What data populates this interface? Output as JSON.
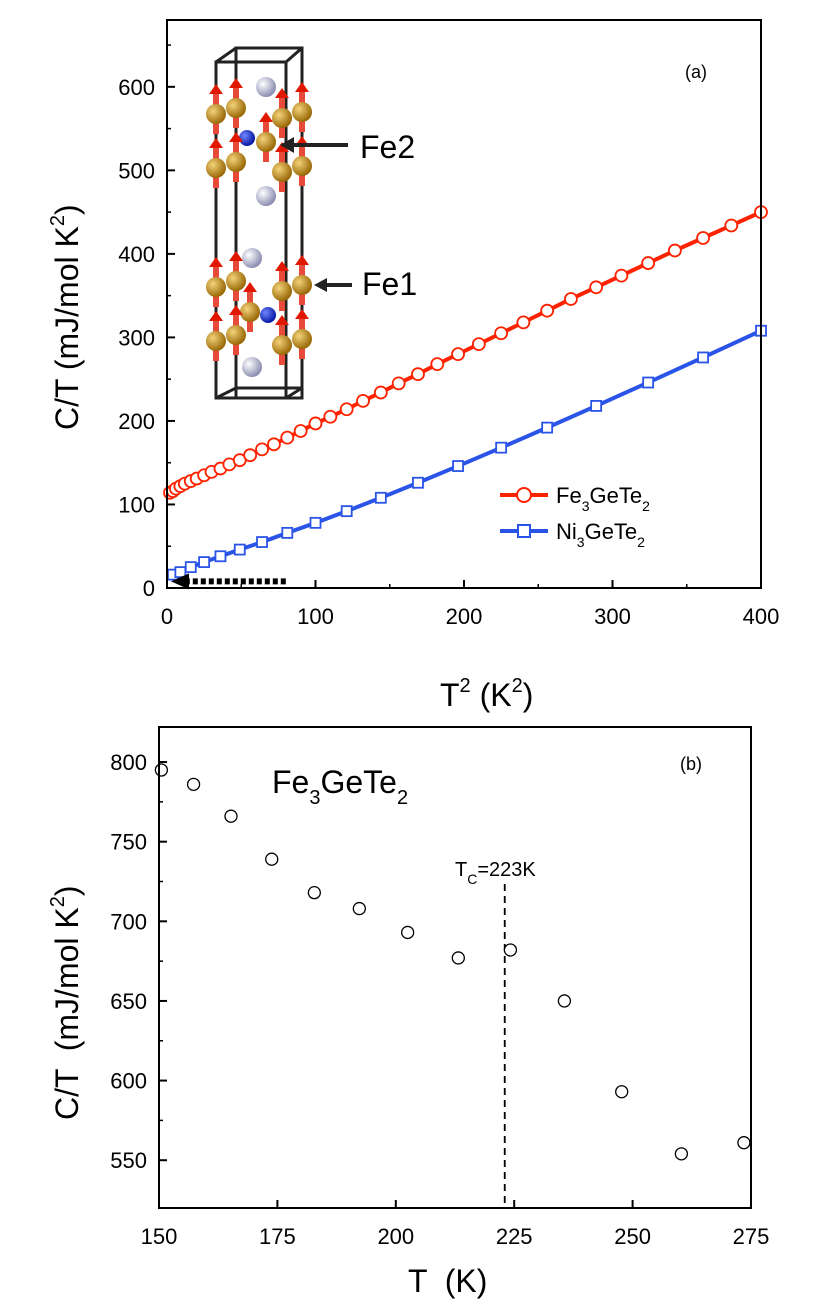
{
  "chart_data": [
    {
      "type": "line",
      "panel_label": "(a)",
      "xlabel": "T",
      "xlabel_sup": "2",
      "xlabel_units": " (K",
      "xlabel_units_sup": "2",
      "xlabel_close": ")",
      "ylabel": "C/T (mJ/mol K",
      "ylabel_sup": "2",
      "ylabel_close": ")",
      "xlim": [
        0,
        400
      ],
      "ylim": [
        0,
        680
      ],
      "xticks": [
        0,
        100,
        200,
        300,
        400
      ],
      "yticks": [
        0,
        100,
        200,
        300,
        400,
        500,
        600
      ],
      "xtick_labels": [
        "0",
        "100",
        "200",
        "300",
        "400"
      ],
      "ytick_labels": [
        "0",
        "100",
        "200",
        "300",
        "400",
        "500",
        "600"
      ],
      "series": [
        {
          "name": "Fe3GeTe2",
          "label_parts": [
            "Fe",
            "3",
            "GeTe",
            "2"
          ],
          "color": "#ff2200",
          "marker": "circle",
          "x": [
            2,
            4,
            6,
            9,
            12,
            16,
            20,
            25,
            30,
            36,
            42,
            49,
            56,
            64,
            72,
            81,
            90,
            100,
            110,
            121,
            132,
            144,
            156,
            169,
            182,
            196,
            210,
            225,
            240,
            256,
            272,
            289,
            306,
            324,
            342,
            361,
            380,
            400
          ],
          "y": [
            114,
            116,
            119,
            122,
            125,
            128,
            131,
            135,
            139,
            143,
            148,
            153,
            159,
            166,
            172,
            180,
            188,
            197,
            205,
            214,
            224,
            234,
            245,
            256,
            268,
            280,
            292,
            305,
            318,
            332,
            346,
            360,
            374,
            389,
            404,
            419,
            434,
            450
          ]
        },
        {
          "name": "Ni3GeTe2",
          "label_parts": [
            "Ni",
            "3",
            "GeTe",
            "2"
          ],
          "color": "#2a54e8",
          "marker": "square",
          "x": [
            4,
            9,
            16,
            25,
            36,
            49,
            64,
            81,
            100,
            121,
            144,
            169,
            196,
            225,
            256,
            289,
            324,
            361,
            400
          ],
          "y": [
            16,
            19,
            25,
            31,
            38,
            46,
            55,
            66,
            78,
            92,
            108,
            126,
            146,
            168,
            192,
            218,
            246,
            276,
            308
          ]
        }
      ],
      "annotations": {
        "fe2_label": "Fe2",
        "fe1_label": "Fe1",
        "dotted_arrow_from_x": 80,
        "dotted_arrow_y": 8
      }
    },
    {
      "type": "scatter",
      "panel_label": "(b)",
      "title": "Fe3GeTe2",
      "title_parts": [
        "Fe",
        "3",
        "GeTe",
        "2"
      ],
      "xlabel": "T  (K)",
      "ylabel": "C/T  (mJ/mol K",
      "ylabel_sup": "2",
      "ylabel_close": ")",
      "xlim": [
        150,
        275
      ],
      "ylim": [
        520,
        822
      ],
      "xticks": [
        150,
        175,
        200,
        225,
        250,
        275
      ],
      "yticks": [
        550,
        600,
        650,
        700,
        750,
        800
      ],
      "xtick_labels": [
        "150",
        "175",
        "200",
        "225",
        "250",
        "275"
      ],
      "ytick_labels": [
        "550",
        "600",
        "650",
        "700",
        "750",
        "800"
      ],
      "series": [
        {
          "name": "Fe3GeTe2",
          "marker": "open-circle",
          "x": [
            150.5,
            157.3,
            165.2,
            173.8,
            182.8,
            192.3,
            202.5,
            213.2,
            224.2,
            235.6,
            247.7,
            260.3,
            273.5
          ],
          "y": [
            795,
            786,
            766,
            739,
            718,
            708,
            693,
            677,
            682,
            650,
            593,
            554,
            561
          ]
        }
      ],
      "tc": {
        "x": 223,
        "label_main": "T",
        "label_sub": "C",
        "label_rest": "=223K"
      }
    }
  ]
}
